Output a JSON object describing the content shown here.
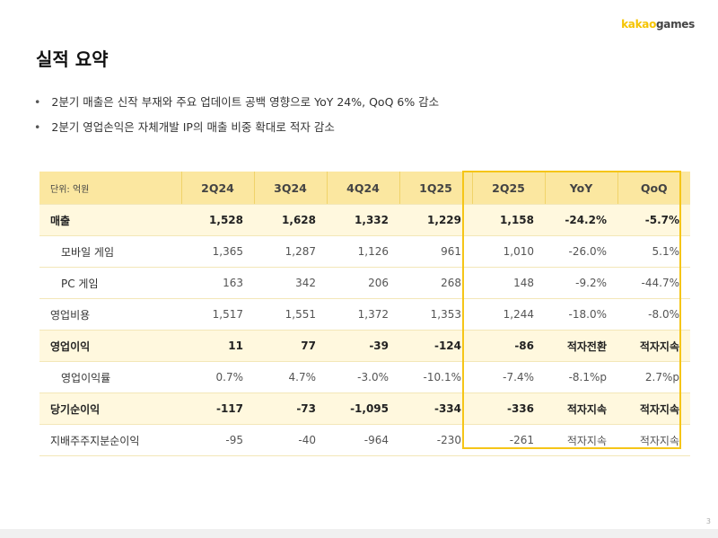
{
  "logo": {
    "part1": "kakao",
    "part2": "games"
  },
  "title": "실적 요약",
  "bullets": [
    "2분기 매출은 신작 부재와 주요 업데이트 공백 영향으로 YoY 24%, QoQ 6% 감소",
    "2분기 영업손익은 자체개발 IP의 매출 비중 확대로 적자 감소"
  ],
  "table": {
    "unit": "단위: 억원",
    "columns": [
      "2Q24",
      "3Q24",
      "4Q24",
      "1Q25",
      "2Q25",
      "YoY",
      "QoQ"
    ],
    "rows": [
      {
        "label": "매출",
        "values": [
          "1,528",
          "1,628",
          "1,332",
          "1,229",
          "1,158",
          "-24.2%",
          "-5.7%"
        ]
      },
      {
        "label": "모바일 게임",
        "values": [
          "1,365",
          "1,287",
          "1,126",
          "961",
          "1,010",
          "-26.0%",
          "5.1%"
        ]
      },
      {
        "label": "PC 게임",
        "values": [
          "163",
          "342",
          "206",
          "268",
          "148",
          "-9.2%",
          "-44.7%"
        ]
      },
      {
        "label": "영업비용",
        "values": [
          "1,517",
          "1,551",
          "1,372",
          "1,353",
          "1,244",
          "-18.0%",
          "-8.0%"
        ]
      },
      {
        "label": "영업이익",
        "values": [
          "11",
          "77",
          "-39",
          "-124",
          "-86",
          "적자전환",
          "적자지속"
        ]
      },
      {
        "label": "영업이익률",
        "values": [
          "0.7%",
          "4.7%",
          "-3.0%",
          "-10.1%",
          "-7.4%",
          "-8.1%p",
          "2.7%p"
        ]
      },
      {
        "label": "당기순이익",
        "values": [
          "-117",
          "-73",
          "-1,095",
          "-334",
          "-336",
          "적자지속",
          "적자지속"
        ]
      },
      {
        "label": "지배주주지분순이익",
        "values": [
          "-95",
          "-40",
          "-964",
          "-230",
          "-261",
          "적자지속",
          "적자지속"
        ]
      }
    ]
  },
  "page_number": "3"
}
